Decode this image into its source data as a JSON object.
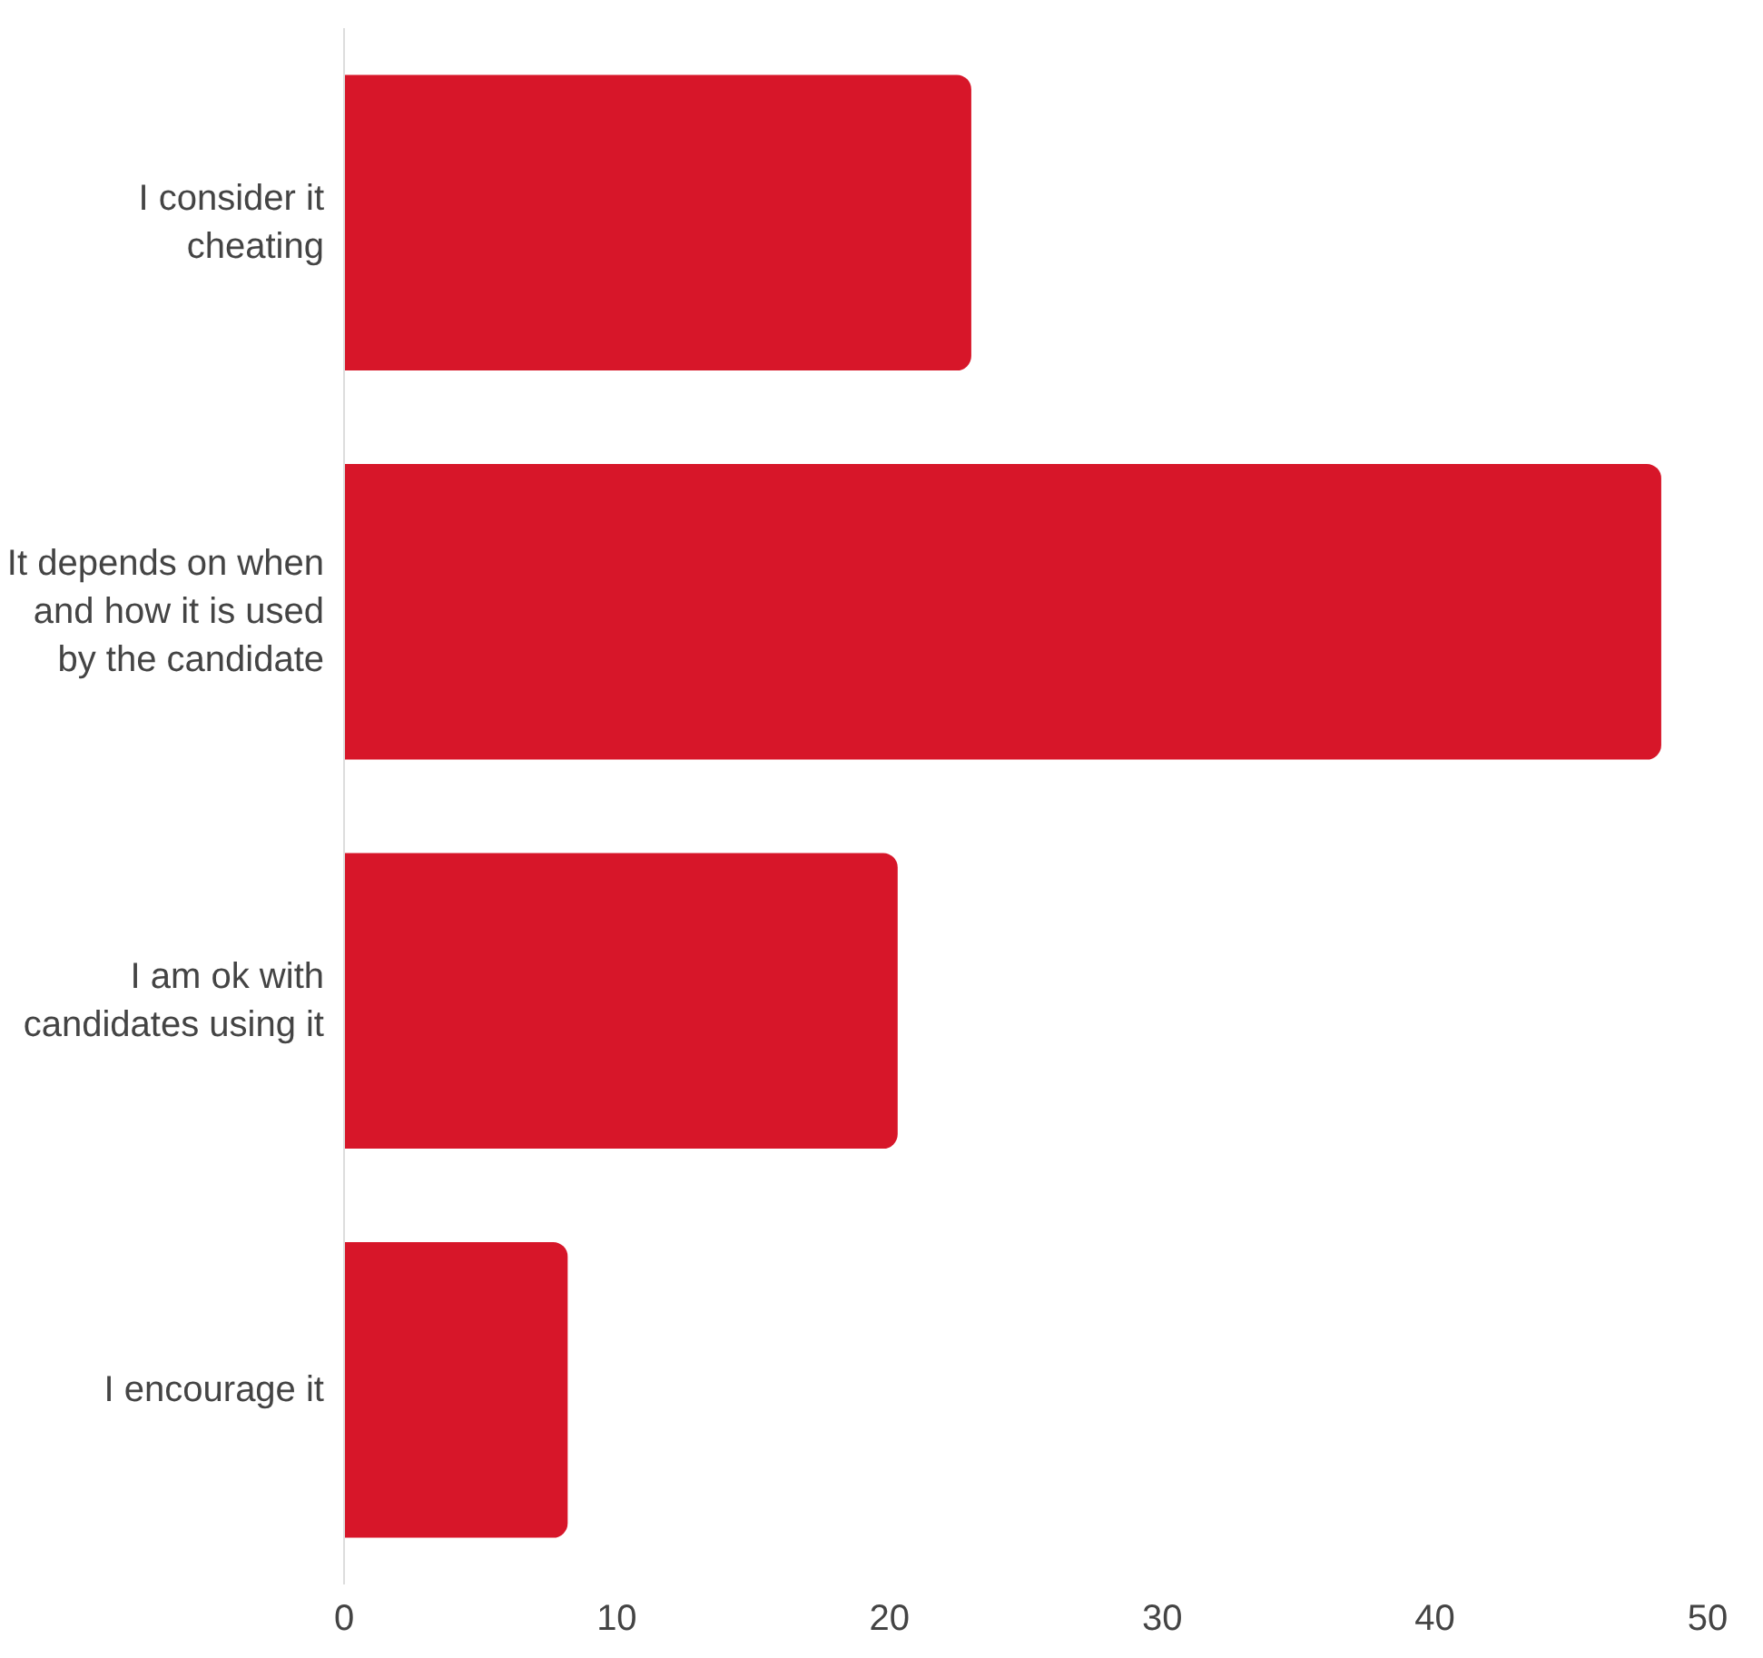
{
  "chart_data": {
    "type": "bar",
    "orientation": "horizontal",
    "categories": [
      "I consider it cheating",
      "It depends on when and how it is used by the candidate",
      "I am ok with candidates using it",
      "I encourage it"
    ],
    "values": [
      23.0,
      48.3,
      20.3,
      8.2
    ],
    "color": "#d71629",
    "xlim": [
      0,
      50
    ],
    "xticks": [
      0,
      10,
      20,
      30,
      40,
      50
    ],
    "grid": false
  }
}
